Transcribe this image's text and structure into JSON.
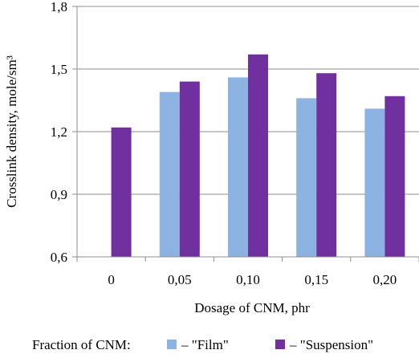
{
  "chart_data": {
    "type": "bar",
    "title": "",
    "xlabel": "Dosage of CNM, phr",
    "ylabel": "Crosslink density,  mole/sm³",
    "categories": [
      "0",
      "0,05",
      "0,10",
      "0,15",
      "0,20"
    ],
    "y_tick_labels": [
      "0,6",
      "0,9",
      "1,2",
      "1,5",
      "1,8"
    ],
    "y_ticks": [
      0.6,
      0.9,
      1.2,
      1.5,
      1.8
    ],
    "ylim": [
      0.6,
      1.8
    ],
    "grid": "horizontal",
    "legend_placement": "bottom",
    "legend_prefix": "Fraction of CNM:",
    "series": [
      {
        "name": "– \"Film\"",
        "color": "#8db3e2",
        "values": [
          null,
          1.39,
          1.46,
          1.36,
          1.31
        ]
      },
      {
        "name": "– \"Suspension\"",
        "color": "#7030a0",
        "values": [
          1.22,
          1.44,
          1.57,
          1.48,
          1.37
        ]
      }
    ]
  }
}
